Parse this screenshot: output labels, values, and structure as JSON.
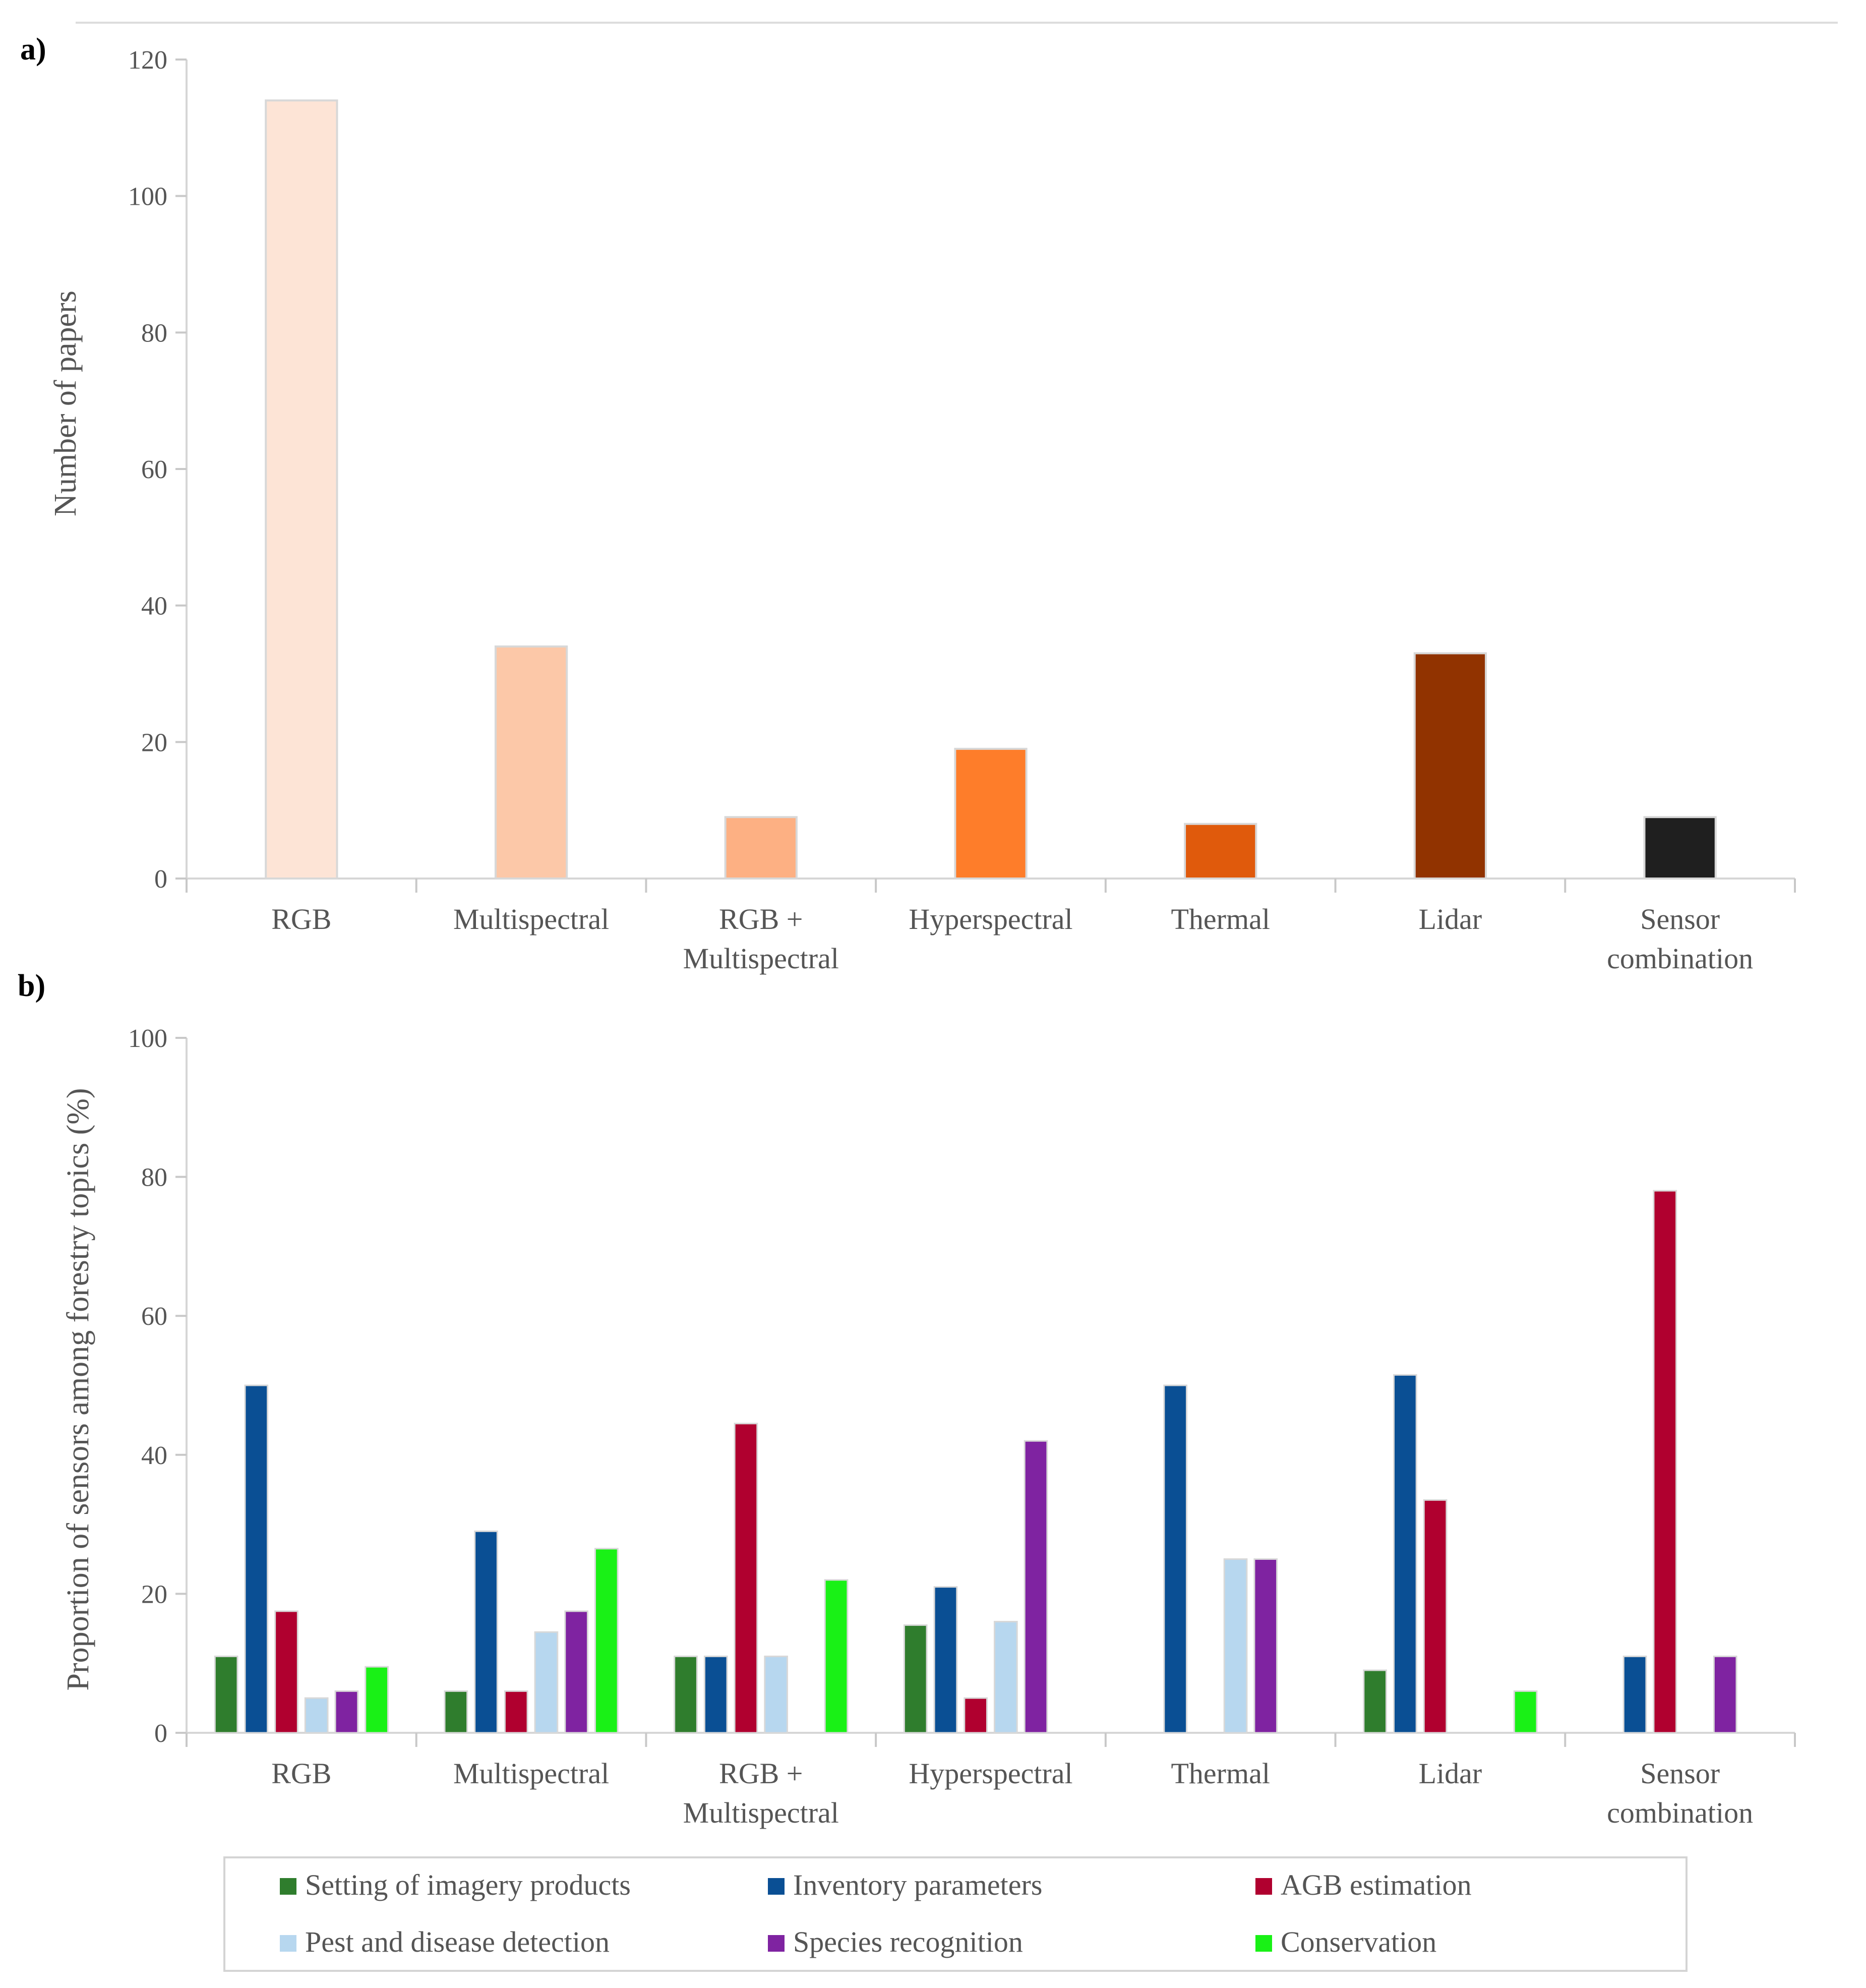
{
  "chart_data": [
    {
      "panel": "a)",
      "type": "bar",
      "categories": [
        "RGB",
        "Multispectral",
        "RGB + Multispectral",
        "Hyperspectral",
        "Thermal",
        "Lidar",
        "Sensor combination"
      ],
      "category_lines": [
        [
          "RGB"
        ],
        [
          "Multispectral"
        ],
        [
          "RGB +",
          "Multispectral"
        ],
        [
          "Hyperspectral"
        ],
        [
          "Thermal"
        ],
        [
          "Lidar"
        ],
        [
          "Sensor",
          "combination"
        ]
      ],
      "values": [
        114,
        34,
        9,
        19,
        8,
        33,
        9
      ],
      "colors": [
        "#fde4d6",
        "#fcc8a8",
        "#fdb083",
        "#fe7d2a",
        "#e05a0c",
        "#913300",
        "#1f1f1f"
      ],
      "title": "",
      "xlabel": "",
      "ylabel": "Number of papers",
      "ylim": [
        0,
        120
      ],
      "yticks": [
        0,
        20,
        40,
        60,
        80,
        100,
        120
      ]
    },
    {
      "panel": "b)",
      "type": "bar",
      "categories": [
        "RGB",
        "Multispectral",
        "RGB + Multispectral",
        "Hyperspectral",
        "Thermal",
        "Lidar",
        "Sensor combination"
      ],
      "category_lines": [
        [
          "RGB"
        ],
        [
          "Multispectral"
        ],
        [
          "RGB +",
          "Multispectral"
        ],
        [
          "Hyperspectral"
        ],
        [
          "Thermal"
        ],
        [
          "Lidar"
        ],
        [
          "Sensor",
          "combination"
        ]
      ],
      "series": [
        {
          "name": "Setting of imagery products",
          "color": "#2f7d2d",
          "values": [
            11,
            6,
            11,
            15.5,
            0,
            9,
            0
          ]
        },
        {
          "name": "Inventory parameters",
          "color": "#0a4f94",
          "values": [
            50,
            29,
            11,
            21,
            50,
            51.5,
            11
          ]
        },
        {
          "name": "AGB estimation",
          "color": "#b0002f",
          "values": [
            17.5,
            6,
            44.5,
            5,
            0,
            33.5,
            78
          ]
        },
        {
          "name": "Pest and disease detection",
          "color": "#b7d7ef",
          "values": [
            5,
            14.5,
            11,
            16,
            25,
            0,
            0
          ]
        },
        {
          "name": "Species recognition",
          "color": "#7f23a1",
          "values": [
            6,
            17.5,
            0,
            42,
            25,
            0,
            11
          ]
        },
        {
          "name": "Conservation",
          "color": "#19f116",
          "values": [
            9.5,
            26.5,
            22,
            0,
            0,
            6,
            0
          ]
        }
      ],
      "title": "",
      "xlabel": "",
      "ylabel": "Proportion of sensors among forestry topics (%)",
      "ylim": [
        0,
        100
      ],
      "yticks": [
        0,
        20,
        40,
        60,
        80,
        100
      ],
      "legend_position": "bottom"
    }
  ]
}
